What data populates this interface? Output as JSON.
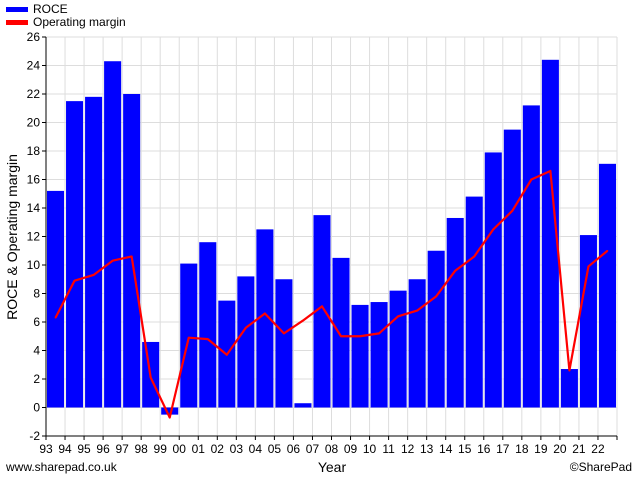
{
  "legend": [
    {
      "label": "ROCE",
      "color": "#0000ff"
    },
    {
      "label": "Operating margin",
      "color": "#ff0000"
    }
  ],
  "footer": {
    "left": "www.sharepad.co.uk",
    "right": "©SharePad"
  },
  "chart_data": {
    "type": "bar",
    "xlabel": "Year",
    "ylabel": "ROCE & Operating margin",
    "ylim": [
      -2,
      26
    ],
    "yticks": [
      -2,
      0,
      2,
      4,
      6,
      8,
      10,
      12,
      14,
      16,
      18,
      20,
      22,
      24,
      26
    ],
    "xticks": [
      "93",
      "94",
      "95",
      "96",
      "97",
      "98",
      "99",
      "00",
      "01",
      "02",
      "03",
      "04",
      "05",
      "06",
      "07",
      "08",
      "09",
      "10",
      "11",
      "12",
      "13",
      "14",
      "15",
      "16",
      "17",
      "18",
      "19",
      "20",
      "21",
      "22"
    ],
    "grid": true,
    "legend_position": "top-left",
    "categories": [
      "93",
      "94",
      "95",
      "96",
      "97",
      "98",
      "99",
      "00",
      "01",
      "02",
      "03",
      "04",
      "05",
      "06",
      "07",
      "08",
      "09",
      "10",
      "11",
      "12",
      "13",
      "14",
      "15",
      "16",
      "17",
      "18",
      "19",
      "20",
      "21",
      "22"
    ],
    "series": [
      {
        "name": "ROCE",
        "type": "bar",
        "color": "#0000ff",
        "values": [
          15.2,
          21.5,
          21.8,
          24.3,
          22.0,
          4.6,
          -0.5,
          10.1,
          11.6,
          7.5,
          9.2,
          12.5,
          9.0,
          0.3,
          13.5,
          10.5,
          7.2,
          7.4,
          8.2,
          9.0,
          11.0,
          13.3,
          14.8,
          17.9,
          19.5,
          21.2,
          24.4,
          2.7,
          12.1,
          17.1
        ]
      },
      {
        "name": "Operating margin",
        "type": "line",
        "color": "#ff0000",
        "values": [
          6.3,
          8.9,
          9.3,
          10.3,
          10.6,
          2.1,
          -0.7,
          4.9,
          4.8,
          3.7,
          5.6,
          6.6,
          5.2,
          6.1,
          7.1,
          5.0,
          5.0,
          5.2,
          6.4,
          6.8,
          7.8,
          9.6,
          10.6,
          12.5,
          13.8,
          16.0,
          16.6,
          2.6,
          9.9,
          11.0
        ]
      }
    ]
  }
}
